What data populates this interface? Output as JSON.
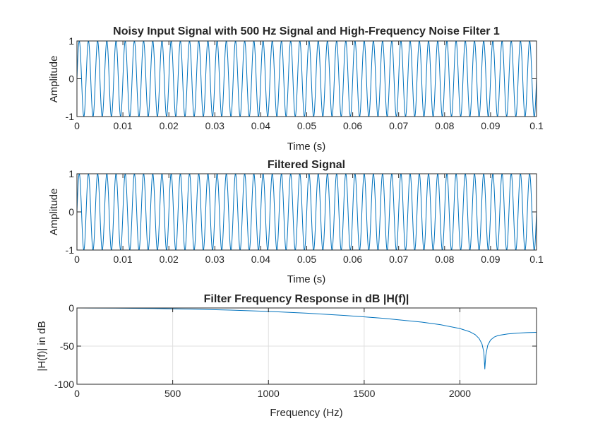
{
  "chart_data": [
    {
      "type": "line",
      "title": "Noisy Input Signal with 500 Hz Signal and High-Frequency Noise Filter 1",
      "xlabel": "Time (s)",
      "ylabel": "Amplitude",
      "xlim": [
        0,
        0.1
      ],
      "ylim": [
        -1,
        1
      ],
      "xticks": [
        "0",
        "0.01",
        "0.02",
        "0.03",
        "0.04",
        "0.05",
        "0.06",
        "0.07",
        "0.08",
        "0.09",
        "0.1"
      ],
      "yticks": [
        "-1",
        "0",
        "1"
      ],
      "grid": false,
      "series": [
        {
          "function": "sine",
          "frequency_hz": 500,
          "amplitude": 1,
          "x_start": 0,
          "x_end": 0.1,
          "color": "#0072BD"
        }
      ]
    },
    {
      "type": "line",
      "title": "Filtered Signal",
      "xlabel": "Time (s)",
      "ylabel": "Amplitude",
      "xlim": [
        0,
        0.1
      ],
      "ylim": [
        -1,
        1
      ],
      "xticks": [
        "0",
        "0.01",
        "0.02",
        "0.03",
        "0.04",
        "0.05",
        "0.06",
        "0.07",
        "0.08",
        "0.09",
        "0.1"
      ],
      "yticks": [
        "-1",
        "0",
        "1"
      ],
      "grid": false,
      "series": [
        {
          "function": "sine",
          "frequency_hz": 500,
          "amplitude": 1,
          "x_start": 0,
          "x_end": 0.1,
          "color": "#0072BD"
        }
      ]
    },
    {
      "type": "line",
      "title": "Filter Frequency Response in dB |H(f)|",
      "xlabel": "Frequency (Hz)",
      "ylabel": "|H(f)| in dB",
      "xlim": [
        0,
        2400
      ],
      "ylim": [
        -100,
        0
      ],
      "xticks": [
        "0",
        "500",
        "1000",
        "1500",
        "2000"
      ],
      "yticks": [
        "-100",
        "-50",
        "0"
      ],
      "grid": true,
      "series": [
        {
          "color": "#0072BD",
          "x": [
            0,
            200,
            400,
            600,
            800,
            1000,
            1200,
            1400,
            1600,
            1800,
            1900,
            2000,
            2050,
            2080,
            2100,
            2115,
            2125,
            2130,
            2135,
            2145,
            2160,
            2180,
            2200,
            2250,
            2300,
            2350,
            2400
          ],
          "y": [
            0,
            -0.2,
            -0.7,
            -1.5,
            -2.8,
            -4.5,
            -6.8,
            -9.8,
            -13.5,
            -18.5,
            -22,
            -27,
            -31,
            -35,
            -40,
            -47,
            -58,
            -80,
            -62,
            -49,
            -42,
            -38,
            -36,
            -34,
            -33,
            -32.3,
            -32
          ]
        }
      ]
    }
  ]
}
